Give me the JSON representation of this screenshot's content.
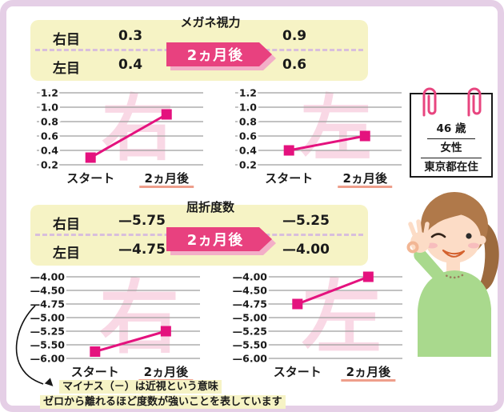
{
  "frame": {
    "border_color": "#e5cfe6",
    "background": "#ffffff"
  },
  "colors": {
    "accent_pink": "#e8417f",
    "accent_pink_light": "#f3aec7",
    "box_yellow": "#f6f3c5",
    "divider_lavender": "#d8bedd",
    "underline_salmon": "#ee9e8b",
    "gridline_gray": "#9e9e9e",
    "chart_line": "#e4127e",
    "watermark_pink": "#f9d8e5"
  },
  "vision_summary": {
    "title": "メガネ視力",
    "badge_label": "2ヵ月後",
    "rows": [
      {
        "label": "右目",
        "before": "0.3",
        "after": "0.9"
      },
      {
        "label": "左目",
        "before": "0.4",
        "after": "0.6"
      }
    ]
  },
  "refraction_summary": {
    "title": "屈折度数",
    "badge_label": "2ヵ月後",
    "rows": [
      {
        "label": "右目",
        "before": "—5.75",
        "after": "—5.25"
      },
      {
        "label": "左目",
        "before": "—4.75",
        "after": "—4.00"
      }
    ]
  },
  "profile_card": {
    "lines": [
      "46 歳",
      "女性",
      "東京都在住"
    ]
  },
  "footnote": {
    "marker": "▲",
    "line1": "マイナス（－）は近視という意味",
    "line2": "ゼロから離れるほど度数が強いことを表しています"
  },
  "chart_data": [
    {
      "type": "line",
      "title": "右目 メガネ視力",
      "watermark": "右",
      "categories": [
        "スタート",
        "2ヵ月後"
      ],
      "values": [
        0.3,
        0.9
      ],
      "yticks": [
        1.2,
        1.0,
        0.8,
        0.6,
        0.4,
        0.2
      ],
      "ytick_labels": [
        "1.2",
        "1.0",
        "0.8",
        "0.6",
        "0.4",
        "0.2"
      ],
      "ylim": [
        0.2,
        1.2
      ],
      "grid": true,
      "underline_last_category": true
    },
    {
      "type": "line",
      "title": "左目 メガネ視力",
      "watermark": "左",
      "categories": [
        "スタート",
        "2ヵ月後"
      ],
      "values": [
        0.4,
        0.6
      ],
      "yticks": [
        1.2,
        1.0,
        0.8,
        0.6,
        0.4,
        0.2
      ],
      "ytick_labels": [
        "1.2",
        "1.0",
        "0.8",
        "0.6",
        "0.4",
        "0.2"
      ],
      "ylim": [
        0.2,
        1.2
      ],
      "grid": true,
      "underline_last_category": true
    },
    {
      "type": "line",
      "title": "右目 屈折度数",
      "watermark": "右",
      "categories": [
        "スタート",
        "2ヵ月後"
      ],
      "values": [
        -5.75,
        -5.25
      ],
      "yticks": [
        -4.0,
        -4.5,
        -4.75,
        -5.0,
        -5.25,
        -5.5,
        -6.0
      ],
      "ytick_labels": [
        "—4.00",
        "—4.50",
        "—4.75",
        "—5.00",
        "—5.25",
        "—5.50",
        "—6.00"
      ],
      "ylim": [
        -6.0,
        -4.0
      ],
      "grid": true,
      "underline_last_category": true
    },
    {
      "type": "line",
      "title": "左目 屈折度数",
      "watermark": "左",
      "categories": [
        "スタート",
        "2ヵ月後"
      ],
      "values": [
        -4.75,
        -4.0
      ],
      "yticks": [
        -4.0,
        -4.5,
        -4.75,
        -5.0,
        -5.25,
        -5.5,
        -6.0
      ],
      "ytick_labels": [
        "—4.00",
        "—4.50",
        "—4.75",
        "—5.00",
        "—5.25",
        "—5.50",
        "—6.00"
      ],
      "ylim": [
        -6.0,
        -4.0
      ],
      "grid": true,
      "underline_last_category": true
    }
  ]
}
